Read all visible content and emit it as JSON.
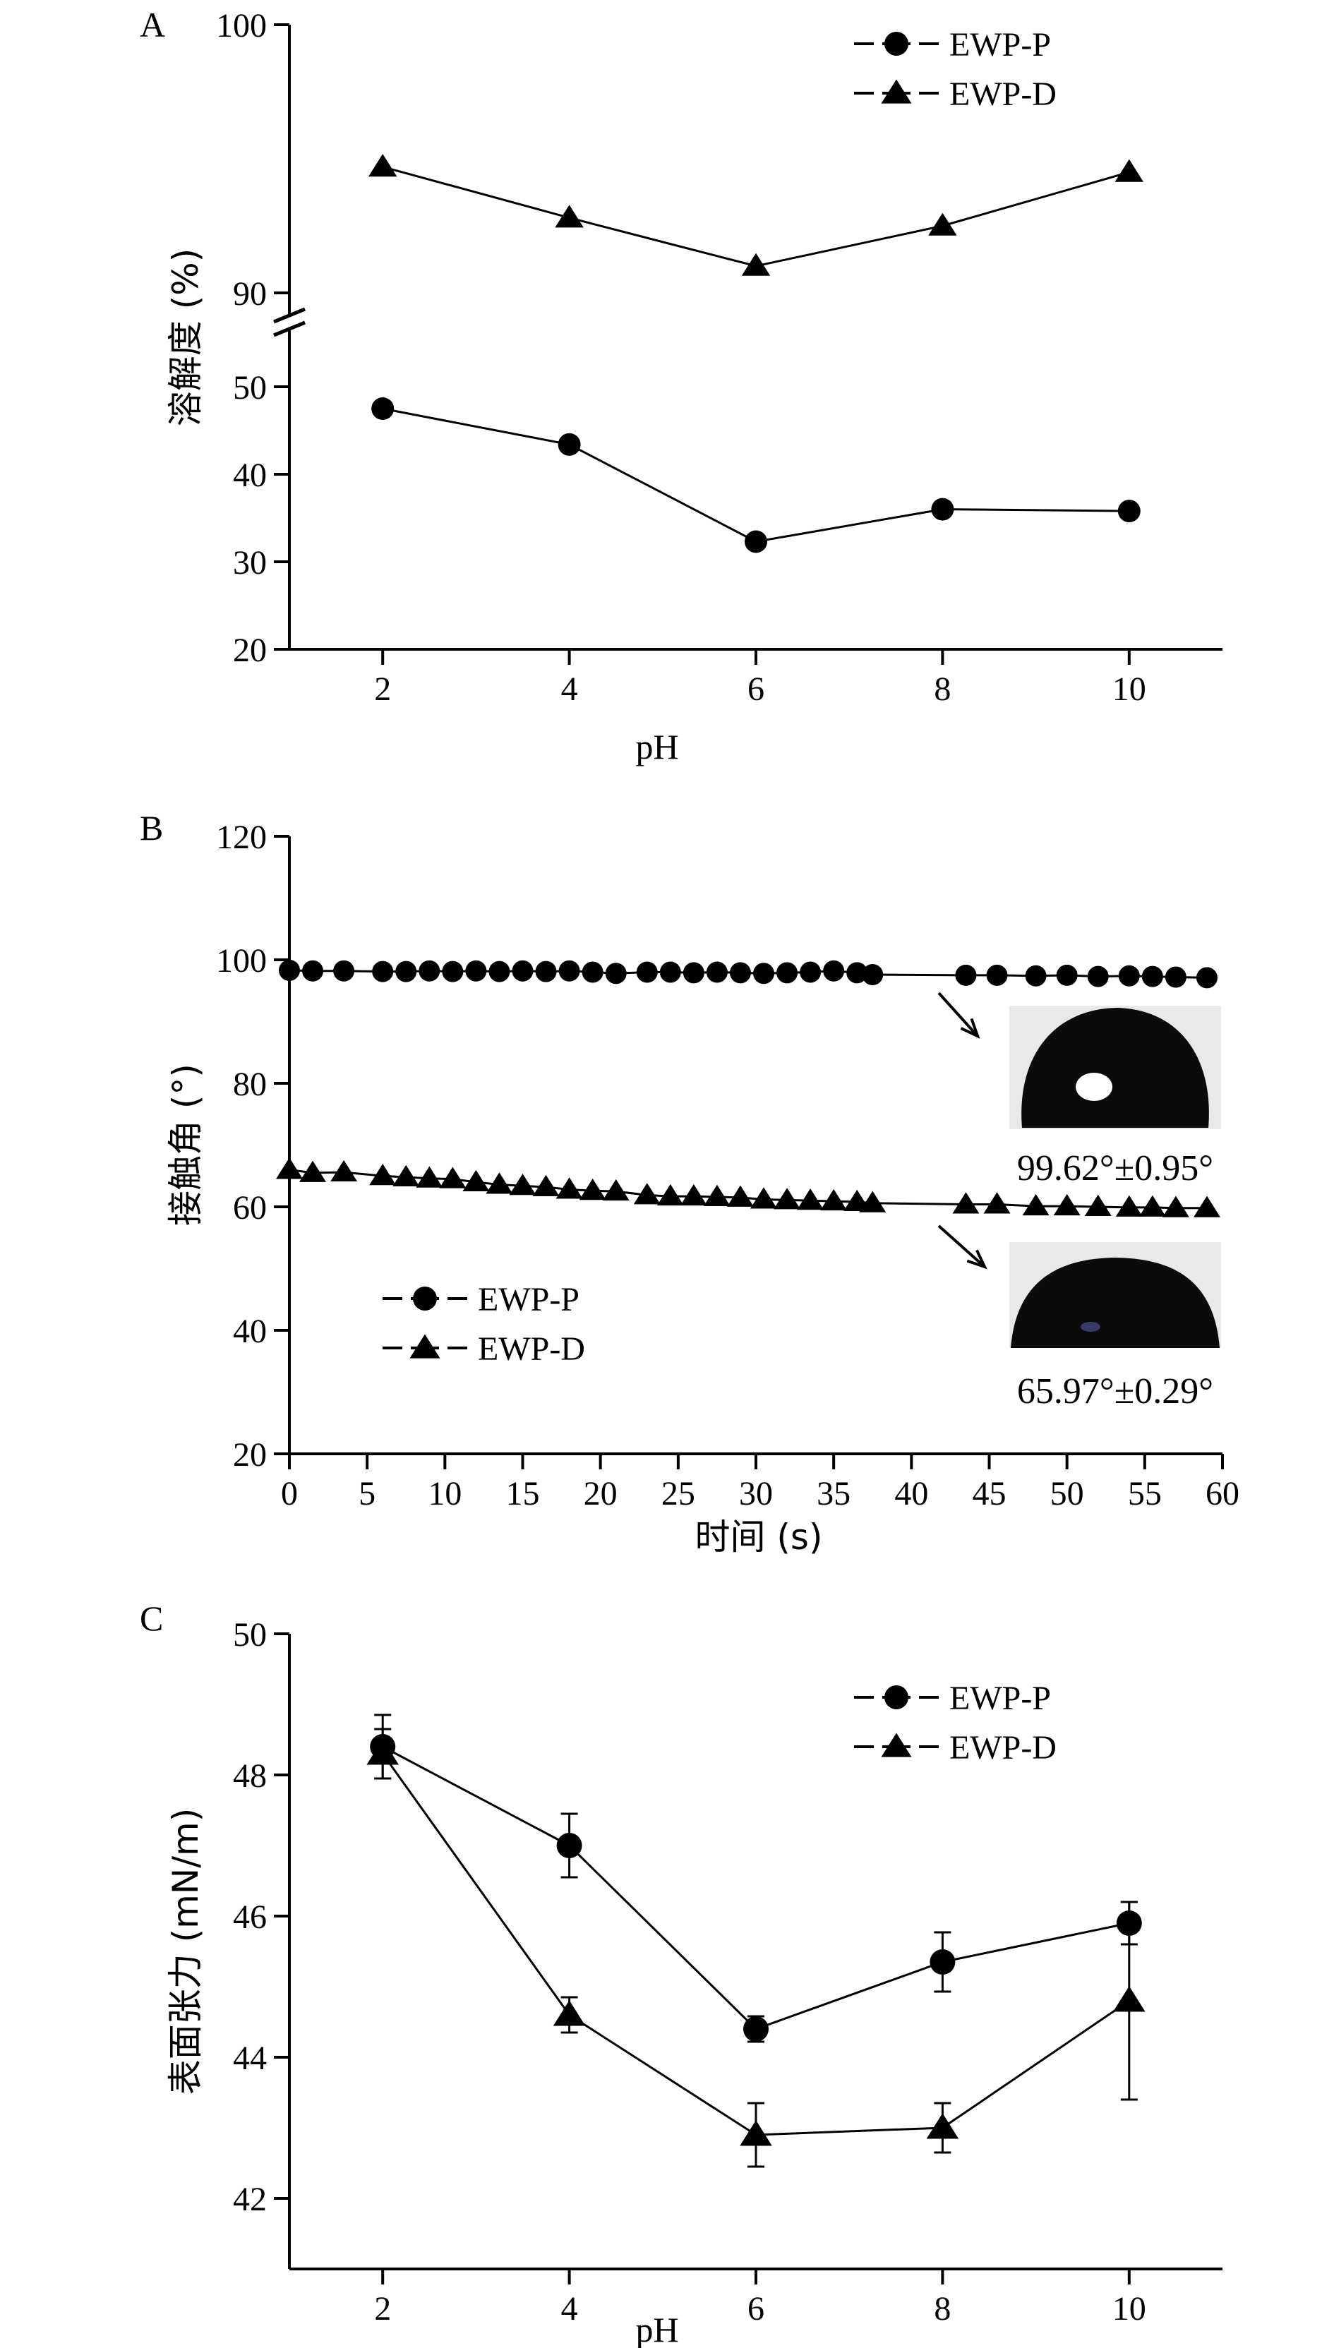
{
  "chart_data": [
    {
      "type": "line",
      "panel": "A",
      "xlabel": "pH",
      "ylabel": "溶解度 (%)",
      "x": [
        2,
        4,
        6,
        8,
        10
      ],
      "xticks": [
        "2",
        "4",
        "6",
        "8",
        "10"
      ],
      "xlim": [
        1,
        11
      ],
      "ylim": [
        20,
        100
      ],
      "axis_break": [
        50,
        90
      ],
      "yticks": [
        "20",
        "30",
        "40",
        "50",
        "90",
        "100"
      ],
      "legend_position": "top-right",
      "series": [
        {
          "name": "EWP-P",
          "marker": "circle",
          "values": [
            47.5,
            43.4,
            32.3,
            36.0,
            35.8
          ]
        },
        {
          "name": "EWP-D",
          "marker": "triangle",
          "values": [
            94.7,
            92.8,
            91.0,
            92.5,
            94.5
          ]
        }
      ]
    },
    {
      "type": "line",
      "panel": "B",
      "xlabel": "时间 (s)",
      "ylabel": "接触角 (°)",
      "xlim": [
        0,
        60
      ],
      "ylim": [
        20,
        120
      ],
      "xticks": [
        "0",
        "5",
        "10",
        "15",
        "20",
        "25",
        "30",
        "35",
        "40",
        "45",
        "50",
        "55",
        "60"
      ],
      "yticks": [
        "20",
        "40",
        "60",
        "80",
        "100",
        "120"
      ],
      "legend_position": "bottom-left",
      "series": [
        {
          "name": "EWP-P",
          "marker": "circle",
          "x": [
            0,
            1.5,
            3.5,
            6,
            7.5,
            9,
            10.5,
            12,
            13.5,
            15,
            16.5,
            18,
            19.5,
            21,
            23,
            24.5,
            26,
            27.5,
            29,
            30.5,
            32,
            33.5,
            35,
            36.5,
            37.5,
            43.5,
            45.5,
            48,
            50,
            52,
            54,
            55.5,
            57,
            59
          ],
          "values": [
            98.3,
            98.2,
            98.2,
            98.1,
            98.1,
            98.2,
            98.1,
            98.2,
            98.1,
            98.2,
            98.1,
            98.2,
            98.0,
            97.8,
            98.0,
            98.0,
            97.9,
            98.0,
            97.9,
            97.8,
            97.9,
            98.0,
            98.2,
            97.9,
            97.6,
            97.5,
            97.5,
            97.4,
            97.5,
            97.3,
            97.4,
            97.3,
            97.2,
            97.1
          ]
        },
        {
          "name": "EWP-D",
          "marker": "triangle",
          "x": [
            0,
            1.5,
            3.5,
            6,
            7.5,
            9,
            10.5,
            12,
            13.5,
            15,
            16.5,
            18,
            19.5,
            21,
            23,
            24.5,
            26,
            27.5,
            29,
            30.5,
            32,
            33.5,
            35,
            36.5,
            37.5,
            43.5,
            45.5,
            48,
            50,
            52,
            54,
            55.5,
            57,
            59
          ],
          "values": [
            66.0,
            65.5,
            65.6,
            65.0,
            64.8,
            64.6,
            64.5,
            64.0,
            63.6,
            63.4,
            63.2,
            62.8,
            62.6,
            62.5,
            61.9,
            61.7,
            61.7,
            61.6,
            61.5,
            61.2,
            61.1,
            61.0,
            60.9,
            60.8,
            60.6,
            60.4,
            60.4,
            60.1,
            60.1,
            60.0,
            59.9,
            59.9,
            59.8,
            59.8
          ]
        }
      ],
      "annotations": [
        {
          "label": "99.62°±0.95°",
          "series": "EWP-P",
          "inset": "water droplet image"
        },
        {
          "label": "65.97°±0.29°",
          "series": "EWP-D",
          "inset": "water droplet image"
        }
      ]
    },
    {
      "type": "line",
      "panel": "C",
      "xlabel": "pH",
      "ylabel": "表面张力 (mN/m)",
      "x": [
        2,
        4,
        6,
        8,
        10
      ],
      "xticks": [
        "2",
        "4",
        "6",
        "8",
        "10"
      ],
      "xlim": [
        1,
        11
      ],
      "ylim": [
        41,
        50
      ],
      "yticks": [
        "42",
        "44",
        "46",
        "48",
        "50"
      ],
      "legend_position": "top-right",
      "series": [
        {
          "name": "EWP-P",
          "marker": "circle",
          "values": [
            48.4,
            47.0,
            44.4,
            45.35,
            45.9
          ],
          "errors": [
            0.45,
            0.45,
            0.18,
            0.42,
            0.3
          ]
        },
        {
          "name": "EWP-D",
          "marker": "triangle",
          "values": [
            48.3,
            44.6,
            42.9,
            43.0,
            44.8
          ],
          "errors": [
            0.35,
            0.25,
            0.45,
            0.35,
            1.4
          ]
        }
      ]
    }
  ]
}
